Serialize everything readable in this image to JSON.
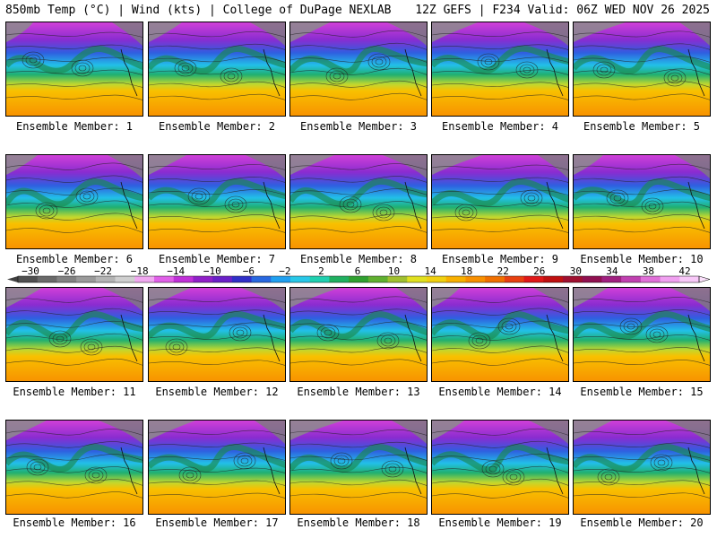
{
  "header": {
    "left": "850mb Temp (°C) | Wind (kts) | College of DuPage NEXLAB",
    "right": "12Z GEFS | F234 Valid: 06Z WED NOV 26 2025"
  },
  "members": [
    "Ensemble Member: 1",
    "Ensemble Member: 2",
    "Ensemble Member: 3",
    "Ensemble Member: 4",
    "Ensemble Member: 5",
    "Ensemble Member: 6",
    "Ensemble Member: 7",
    "Ensemble Member: 8",
    "Ensemble Member: 9",
    "Ensemble Member: 10",
    "Ensemble Member: 11",
    "Ensemble Member: 12",
    "Ensemble Member: 13",
    "Ensemble Member: 14",
    "Ensemble Member: 15",
    "Ensemble Member: 16",
    "Ensemble Member: 17",
    "Ensemble Member: 18",
    "Ensemble Member: 19",
    "Ensemble Member: 20"
  ],
  "colorbar": {
    "labels": [
      "−30",
      "−26",
      "−22",
      "−18",
      "−14",
      "−10",
      "−6",
      "−2",
      "2",
      "6",
      "10",
      "14",
      "18",
      "22",
      "26",
      "30",
      "34",
      "38",
      "42"
    ],
    "colors": [
      "#505050",
      "#6a6a6a",
      "#828282",
      "#9a9a9a",
      "#b4b4b4",
      "#cfcfcf",
      "#f0a8f0",
      "#e060e8",
      "#c030d8",
      "#9020c8",
      "#6a20c8",
      "#3030c8",
      "#2868e0",
      "#20a0f0",
      "#28c8e8",
      "#20d0b0",
      "#20b060",
      "#30a030",
      "#60b030",
      "#a0c030",
      "#e0e020",
      "#f0d010",
      "#f8b000",
      "#f89000",
      "#f07000",
      "#e84010",
      "#e01818",
      "#c01010",
      "#a01030",
      "#901050",
      "#a02080",
      "#c040b0",
      "#e070d8",
      "#f0a0f0",
      "#f8c8f8"
    ]
  }
}
